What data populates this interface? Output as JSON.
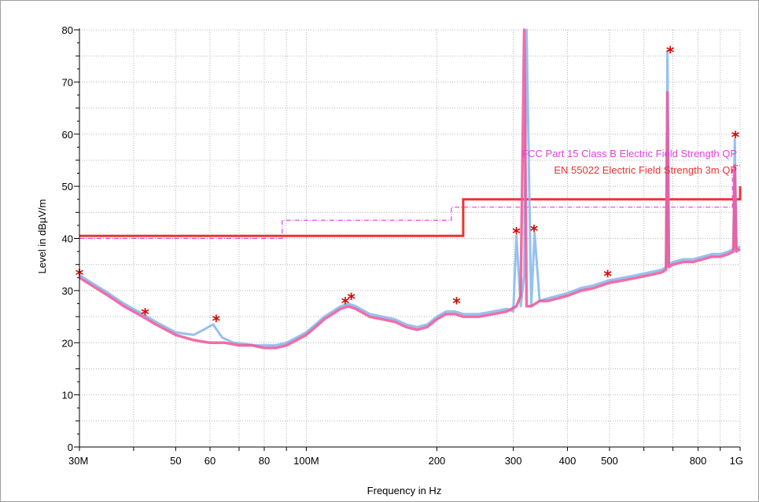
{
  "chart_data": {
    "type": "line",
    "title": "",
    "xlabel": "Frequency in Hz",
    "ylabel": "Level in dBµV/m",
    "x_scale": "log",
    "xlim": [
      30000000,
      1000000000
    ],
    "ylim": [
      0,
      80
    ],
    "grid": true,
    "x_ticks": [
      {
        "value": 30000000,
        "label": "30M"
      },
      {
        "value": 50000000,
        "label": "50"
      },
      {
        "value": 60000000,
        "label": "60"
      },
      {
        "value": 80000000,
        "label": "80"
      },
      {
        "value": 100000000,
        "label": "100M"
      },
      {
        "value": 200000000,
        "label": "200"
      },
      {
        "value": 300000000,
        "label": "300"
      },
      {
        "value": 400000000,
        "label": "400"
      },
      {
        "value": 500000000,
        "label": "500"
      },
      {
        "value": 800000000,
        "label": "800"
      },
      {
        "value": 1000000000,
        "label": "1G"
      }
    ],
    "y_ticks": [
      0,
      10,
      20,
      30,
      40,
      50,
      60,
      70,
      80
    ],
    "limit_lines": [
      {
        "name": "FCC Part 15 Class B Electric Field Strength QP",
        "color": "#dd44dd",
        "style": "dashdot",
        "steps": [
          [
            30000000,
            40
          ],
          [
            88000000,
            40
          ],
          [
            88000000,
            43.5
          ],
          [
            216000000,
            43.5
          ],
          [
            216000000,
            46
          ],
          [
            960000000,
            46
          ],
          [
            960000000,
            54
          ],
          [
            1000000000,
            54
          ]
        ]
      },
      {
        "name": "EN 55022 Electric Field Strength 3m QP",
        "color": "#ee3333",
        "style": "solid",
        "steps": [
          [
            30000000,
            40.5
          ],
          [
            230000000,
            40.5
          ],
          [
            230000000,
            47.5
          ],
          [
            1000000000,
            47.5
          ],
          [
            1000000000,
            50
          ]
        ]
      }
    ],
    "series": [
      {
        "color": "#88bbee",
        "x": [
          30000000,
          32000000,
          35000000,
          38000000,
          42000000,
          45000000,
          50000000,
          55000000,
          58000000,
          61000000,
          64000000,
          68000000,
          72000000,
          76000000,
          80000000,
          85000000,
          90000000,
          95000000,
          100000000,
          105000000,
          110000000,
          115000000,
          120000000,
          125000000,
          130000000,
          140000000,
          150000000,
          160000000,
          170000000,
          180000000,
          190000000,
          200000000,
          210000000,
          220000000,
          230000000,
          250000000,
          270000000,
          290000000,
          300000000,
          305000000,
          312000000,
          318000000,
          322000000,
          330000000,
          336000000,
          345000000,
          360000000,
          380000000,
          400000000,
          430000000,
          460000000,
          500000000,
          540000000,
          580000000,
          620000000,
          660000000,
          675000000,
          680000000,
          685000000,
          700000000,
          740000000,
          780000000,
          820000000,
          860000000,
          900000000,
          940000000,
          965000000,
          972000000,
          980000000,
          1000000000
        ],
        "y": [
          33,
          31.5,
          29.5,
          27.5,
          25.5,
          24,
          22,
          21.5,
          22.5,
          23.5,
          21,
          20,
          19.8,
          19.5,
          19.5,
          19.5,
          20,
          21,
          22,
          23.5,
          25,
          26,
          27,
          27.5,
          27,
          25.5,
          25,
          24.5,
          23.5,
          23,
          23.5,
          25,
          26,
          26,
          25.5,
          25.5,
          26,
          26.5,
          26,
          40.5,
          27,
          33,
          80,
          27,
          41,
          28,
          28.5,
          29,
          29.5,
          30.5,
          31,
          32,
          32.5,
          33,
          33.5,
          34,
          34.5,
          76,
          35,
          35.5,
          36,
          36,
          36.5,
          37,
          37,
          37.5,
          38,
          59,
          38,
          38.5
        ]
      },
      {
        "color": "#ee5599",
        "x": [
          30000000,
          32000000,
          35000000,
          38000000,
          42000000,
          45000000,
          50000000,
          55000000,
          60000000,
          65000000,
          70000000,
          75000000,
          80000000,
          85000000,
          90000000,
          95000000,
          100000000,
          105000000,
          110000000,
          115000000,
          120000000,
          125000000,
          130000000,
          140000000,
          150000000,
          160000000,
          170000000,
          180000000,
          190000000,
          200000000,
          210000000,
          220000000,
          230000000,
          250000000,
          270000000,
          290000000,
          305000000,
          312000000,
          318000000,
          322000000,
          330000000,
          345000000,
          360000000,
          380000000,
          400000000,
          430000000,
          460000000,
          500000000,
          540000000,
          580000000,
          620000000,
          660000000,
          675000000,
          680000000,
          685000000,
          700000000,
          740000000,
          780000000,
          820000000,
          860000000,
          900000000,
          940000000,
          965000000,
          972000000,
          980000000,
          1000000000
        ],
        "y": [
          32.5,
          31,
          29,
          27,
          25,
          23.5,
          21.5,
          20.5,
          20,
          20,
          19.5,
          19.5,
          19,
          19,
          19.5,
          20.5,
          21.5,
          23,
          24.5,
          25.5,
          26.5,
          27,
          26.5,
          25,
          24.5,
          24,
          23,
          22.5,
          23,
          24.5,
          25.5,
          25.5,
          25,
          25,
          25.5,
          26,
          27,
          29,
          80,
          27,
          27,
          28,
          28,
          28.5,
          29,
          30,
          30.5,
          31.5,
          32,
          32.5,
          33,
          33.5,
          34,
          68,
          34.5,
          35,
          35.5,
          35.5,
          36,
          36.5,
          36.5,
          37,
          37.5,
          54,
          37.5,
          38
        ]
      }
    ],
    "markers": {
      "color": "#e00000",
      "symbol": "*",
      "points": [
        {
          "x": 30000000,
          "y": 33.3
        },
        {
          "x": 42500000,
          "y": 25.8
        },
        {
          "x": 62000000,
          "y": 24.5
        },
        {
          "x": 123000000,
          "y": 27.9
        },
        {
          "x": 127000000,
          "y": 28.7
        },
        {
          "x": 222000000,
          "y": 27.9
        },
        {
          "x": 305000000,
          "y": 41.3
        },
        {
          "x": 335000000,
          "y": 41.7
        },
        {
          "x": 495000000,
          "y": 33.1
        },
        {
          "x": 690000000,
          "y": 76
        },
        {
          "x": 975000000,
          "y": 59.7
        }
      ]
    }
  }
}
